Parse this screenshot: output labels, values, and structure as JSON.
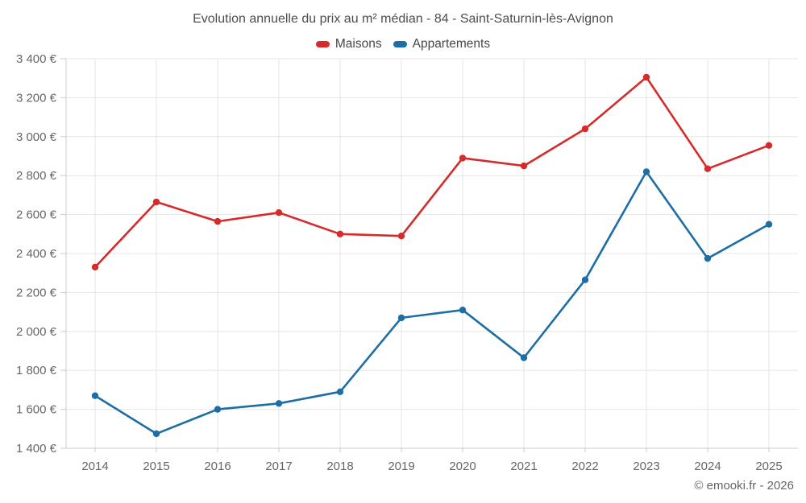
{
  "chart": {
    "title": "Evolution annuelle du prix au m² médian - 84 - Saint-Saturnin-lès-Avignon",
    "footer": "© emooki.fr - 2026"
  },
  "chart_data": {
    "type": "line",
    "title": "Evolution annuelle du prix au m² médian - 84 - Saint-Saturnin-lès-Avignon",
    "categories": [
      "2014",
      "2015",
      "2016",
      "2017",
      "2018",
      "2019",
      "2020",
      "2021",
      "2022",
      "2023",
      "2024",
      "2025"
    ],
    "series": [
      {
        "name": "Maisons",
        "color": "#d62b2b",
        "values": [
          2330,
          2665,
          2565,
          2610,
          2500,
          2490,
          2890,
          2850,
          3040,
          3305,
          2835,
          2955
        ]
      },
      {
        "name": "Appartements",
        "color": "#1c6ea4",
        "values": [
          1670,
          1475,
          1600,
          1630,
          1690,
          2070,
          2110,
          1865,
          2265,
          2820,
          2375,
          2550
        ]
      }
    ],
    "xlabel": "",
    "ylabel": "",
    "ylim": [
      1400,
      3400
    ],
    "y_tick_step": 200,
    "y_tick_suffix": " €",
    "grid": true,
    "legend_position": "top",
    "colors": {
      "gridline": "#e6e6e6",
      "axis": "#cccccc",
      "tick_label": "#666666",
      "title": "#4d4d4d"
    },
    "footer": "© emooki.fr - 2026"
  }
}
